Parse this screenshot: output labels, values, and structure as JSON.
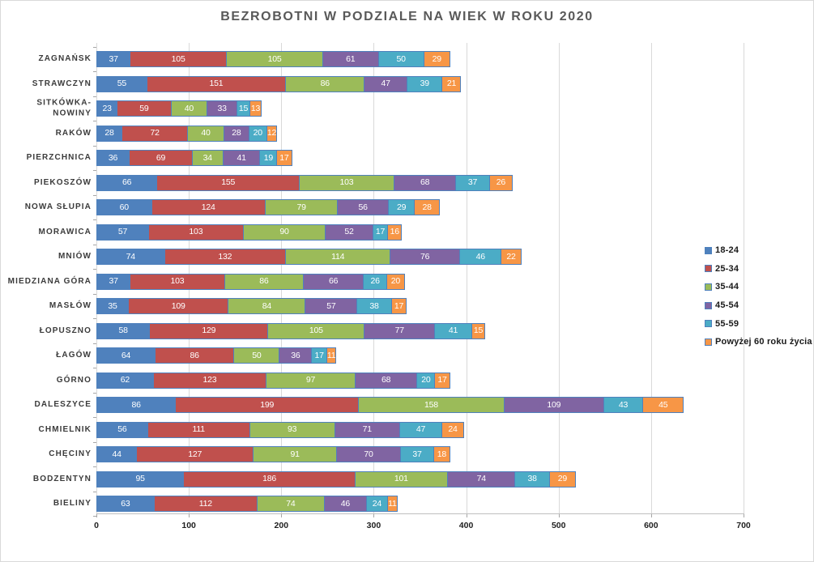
{
  "chart_data": {
    "type": "bar",
    "orientation": "horizontal",
    "stacked": true,
    "title": "BEZROBOTNI W PODZIALE NA WIEK W ROKU 2020",
    "categories": [
      "ZAGNAŃSK",
      "STRAWCZYN",
      "SITKÓWKA-NOWINY",
      "RAKÓW",
      "PIERZCHNICA",
      "PIEKOSZÓW",
      "NOWA SŁUPIA",
      "MORAWICA",
      "MNIÓW",
      "MIEDZIANA GÓRA",
      "MASŁÓW",
      "ŁOPUSZNO",
      "ŁAGÓW",
      "GÓRNO",
      "DALESZYCE",
      "CHMIELNIK",
      "CHĘCINY",
      "BODZENTYN",
      "BIELINY"
    ],
    "series": [
      {
        "name": "18-24",
        "color": "#4F81BD",
        "values": [
          37,
          55,
          23,
          28,
          36,
          66,
          60,
          57,
          74,
          37,
          35,
          58,
          64,
          62,
          86,
          56,
          44,
          95,
          63
        ]
      },
      {
        "name": "25-34",
        "color": "#C0504D",
        "values": [
          105,
          151,
          59,
          72,
          69,
          155,
          124,
          103,
          132,
          103,
          109,
          129,
          86,
          123,
          199,
          111,
          127,
          186,
          112
        ]
      },
      {
        "name": "35-44",
        "color": "#9BBB59",
        "values": [
          105,
          86,
          40,
          40,
          34,
          103,
          79,
          90,
          114,
          86,
          84,
          105,
          50,
          97,
          158,
          93,
          91,
          101,
          74
        ]
      },
      {
        "name": "45-54",
        "color": "#8064A2",
        "values": [
          61,
          47,
          33,
          28,
          41,
          68,
          56,
          52,
          76,
          66,
          57,
          77,
          36,
          68,
          109,
          71,
          70,
          74,
          46
        ]
      },
      {
        "name": "55-59",
        "color": "#4BACC6",
        "values": [
          50,
          39,
          15,
          20,
          19,
          37,
          29,
          17,
          46,
          26,
          38,
          41,
          17,
          20,
          43,
          47,
          37,
          38,
          24
        ]
      },
      {
        "name": "Powyżej 60 roku życia",
        "color": "#F79646",
        "values": [
          29,
          21,
          13,
          12,
          17,
          26,
          28,
          16,
          22,
          20,
          17,
          15,
          11,
          17,
          45,
          24,
          18,
          29,
          11
        ]
      }
    ],
    "xlabel": "",
    "ylabel": "",
    "xlim": [
      0,
      700
    ],
    "x_ticks": [
      0,
      100,
      200,
      300,
      400,
      500,
      600,
      700
    ],
    "grid": "vertical",
    "legend_position": "right",
    "value_labels": "inside-white",
    "colors": {
      "segment_border": "#4f81bd",
      "gridline": "#d9d9d9",
      "axis_line": "#bfbfbf",
      "title_text": "#595959",
      "category_text": "#3b3b3b",
      "tick_text": "#1f1f1f",
      "value_text": "#ffffff"
    }
  }
}
